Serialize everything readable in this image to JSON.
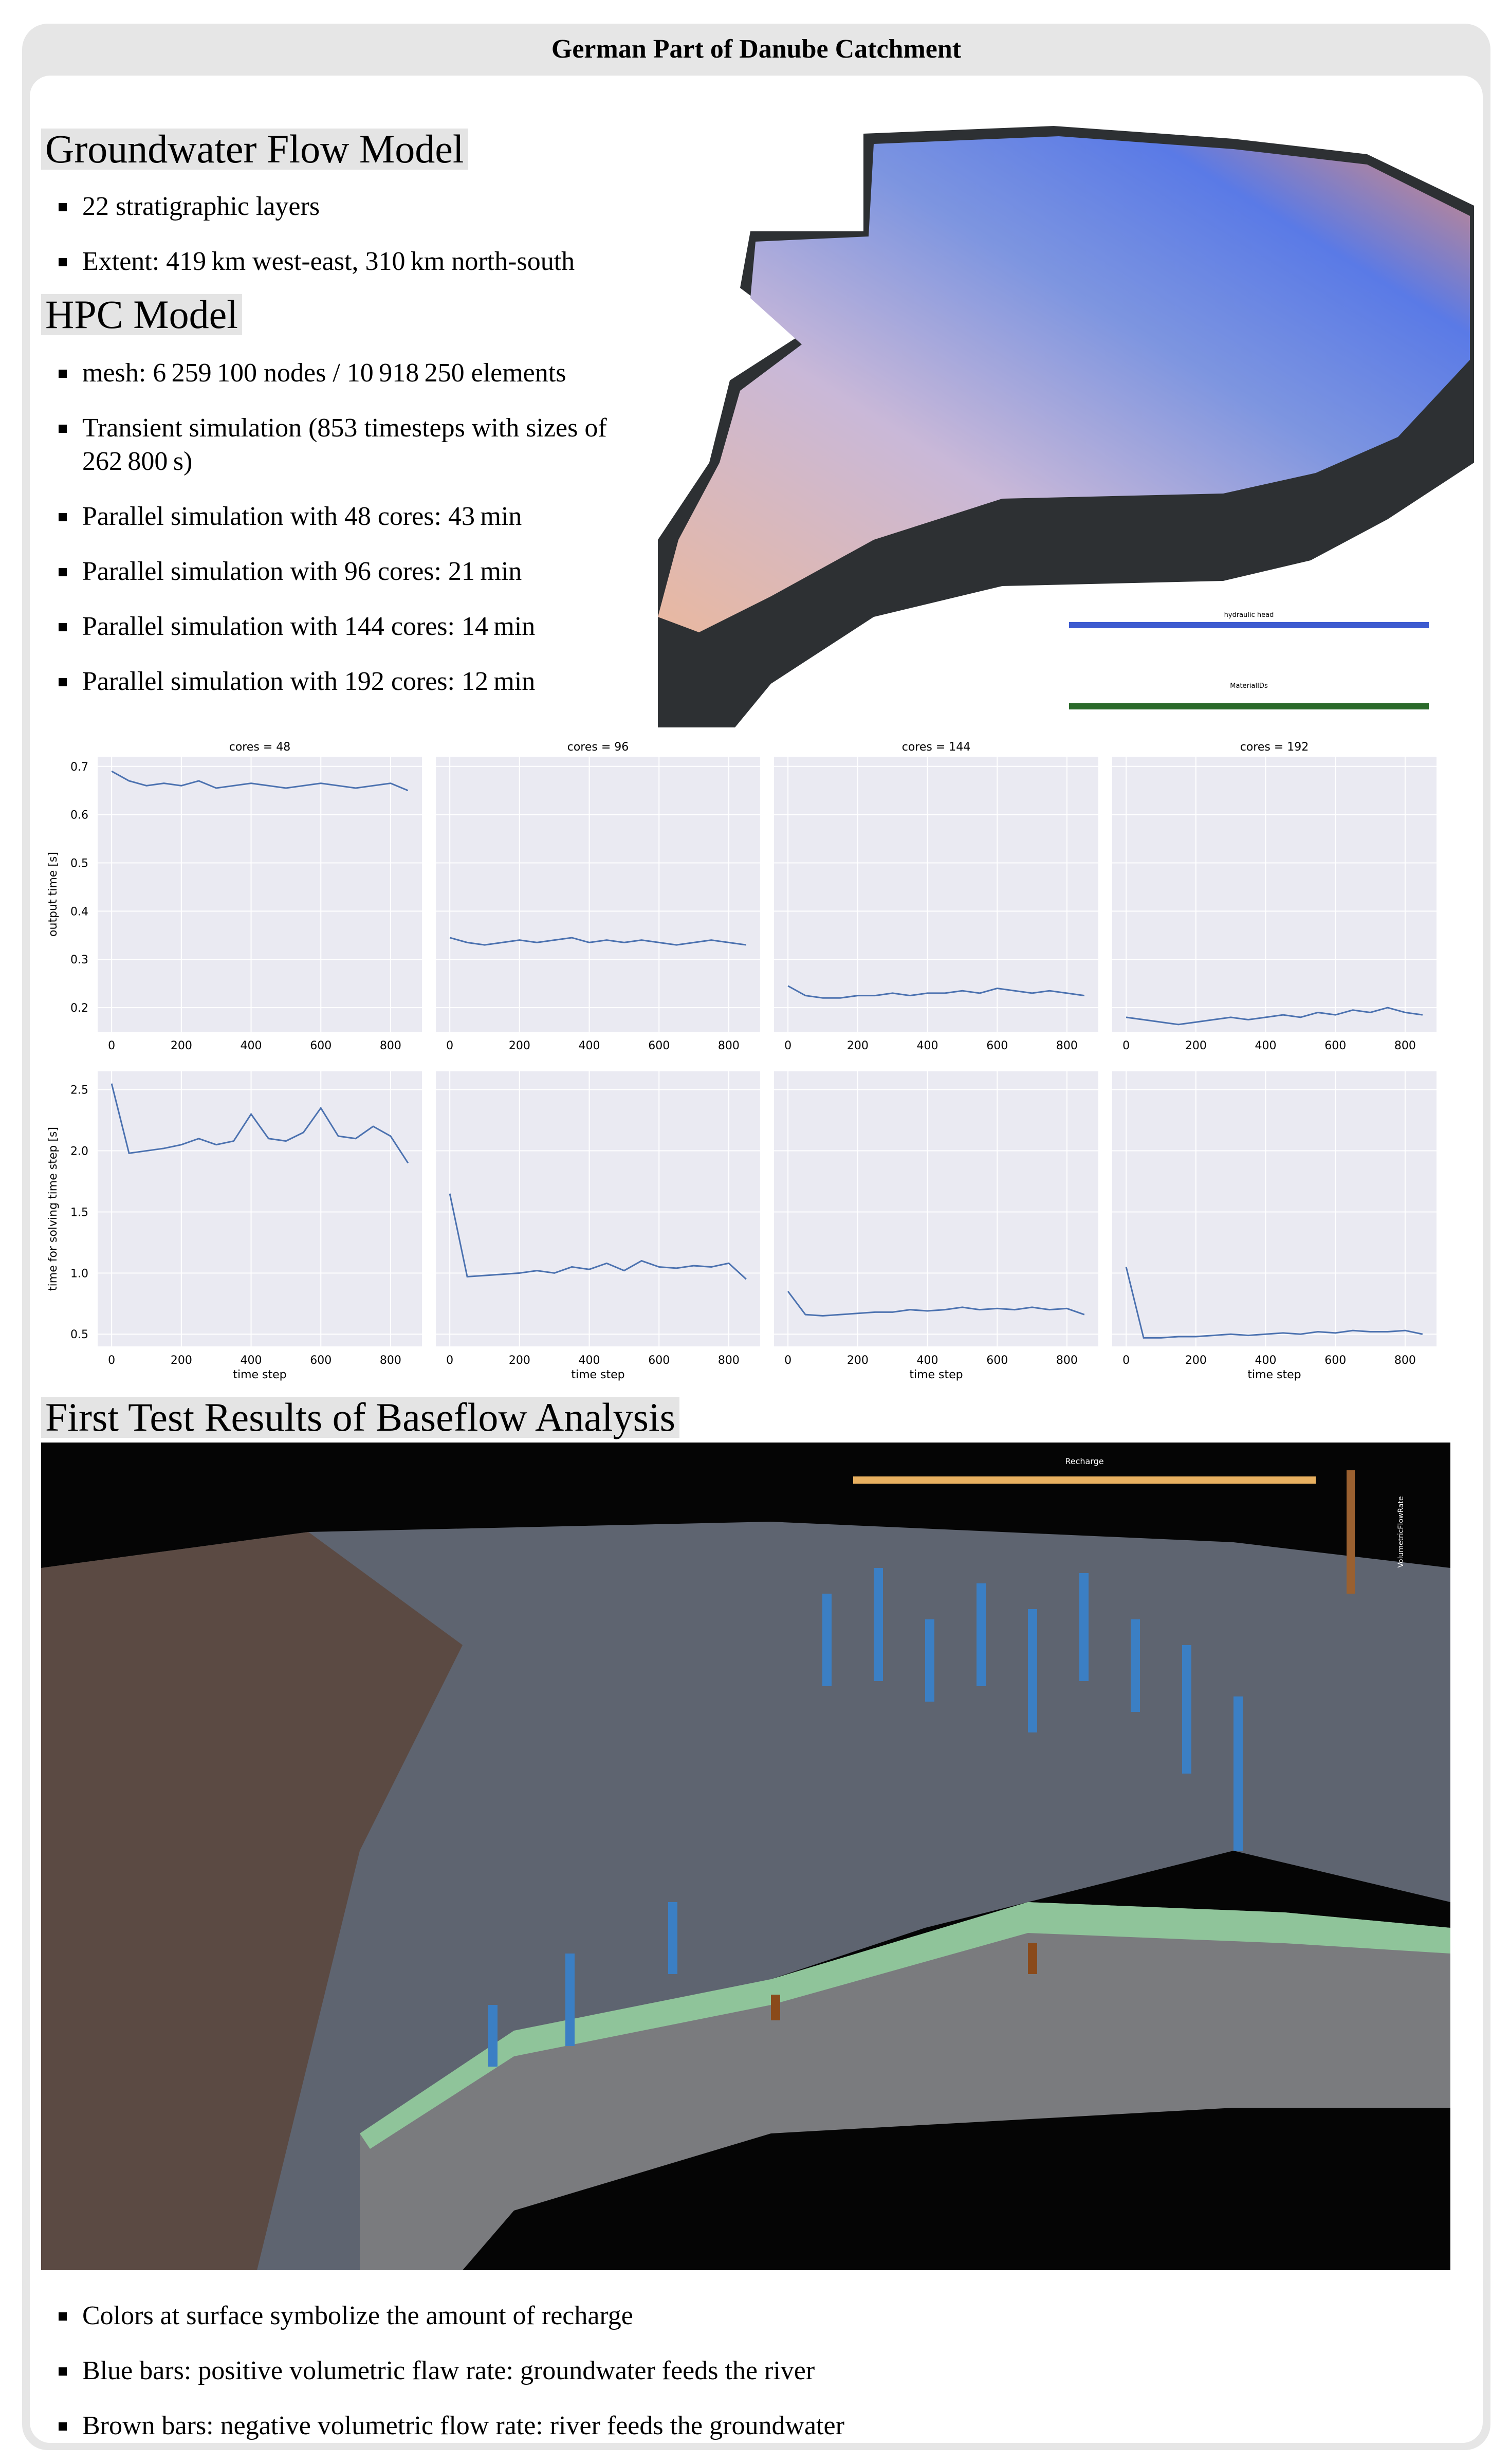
{
  "title": "German Part of Danube Catchment",
  "sections": [
    {
      "heading": "Groundwater Flow Model",
      "bullets": [
        "22 stratigraphic layers",
        "Extent: 419 km west-east, 310 km north-south"
      ]
    },
    {
      "heading": "HPC Model",
      "bullets": [
        "mesh: 6 259 100 nodes / 10 918 250 elements",
        "Transient simulation (853 timesteps with sizes of 262 800 s)",
        "Parallel simulation with 48 cores: 43 min",
        "Parallel simulation with 96 cores: 21 min",
        "Parallel simulation with 144 cores: 14 min",
        "Parallel simulation with 192 cores: 12 min"
      ]
    },
    {
      "heading": "First Test Results of Baseflow Analysis",
      "bullets": [
        "Colors at surface symbolize the amount of recharge",
        "Blue bars: positive volumetric flaw rate: groundwater feeds the river",
        "Brown bars: negative volumetric flow rate: river feeds the groundwater"
      ]
    }
  ],
  "image_labels": {
    "head": "hydraulic head",
    "material": "MaterialIDs",
    "recharge": "Recharge",
    "flow": "VolumetricFlowRate"
  },
  "chart_data": {
    "type": "line",
    "color": "#4c72b0",
    "grid": true,
    "x": [
      0,
      50,
      100,
      150,
      200,
      250,
      300,
      350,
      400,
      450,
      500,
      550,
      600,
      650,
      700,
      750,
      800,
      850
    ],
    "xlim": [
      -40,
      890
    ],
    "xticks": [
      0,
      200,
      400,
      600,
      800
    ],
    "xlabel": "time step",
    "rows": [
      {
        "ylabel": "output time [s]",
        "ylim": [
          0.15,
          0.72
        ],
        "yticks": [
          0.2,
          0.3,
          0.4,
          0.5,
          0.6,
          0.7
        ],
        "charts": [
          {
            "title": "cores = 48",
            "values": [
              0.69,
              0.67,
              0.66,
              0.665,
              0.66,
              0.67,
              0.655,
              0.66,
              0.665,
              0.66,
              0.655,
              0.66,
              0.665,
              0.66,
              0.655,
              0.66,
              0.665,
              0.65
            ]
          },
          {
            "title": "cores = 96",
            "values": [
              0.345,
              0.335,
              0.33,
              0.335,
              0.34,
              0.335,
              0.34,
              0.345,
              0.335,
              0.34,
              0.335,
              0.34,
              0.335,
              0.33,
              0.335,
              0.34,
              0.335,
              0.33
            ]
          },
          {
            "title": "cores = 144",
            "values": [
              0.245,
              0.225,
              0.22,
              0.22,
              0.225,
              0.225,
              0.23,
              0.225,
              0.23,
              0.23,
              0.235,
              0.23,
              0.24,
              0.235,
              0.23,
              0.235,
              0.23,
              0.225
            ]
          },
          {
            "title": "cores = 192",
            "values": [
              0.18,
              0.175,
              0.17,
              0.165,
              0.17,
              0.175,
              0.18,
              0.175,
              0.18,
              0.185,
              0.18,
              0.19,
              0.185,
              0.195,
              0.19,
              0.2,
              0.19,
              0.185
            ]
          }
        ]
      },
      {
        "ylabel": "time for solving time step [s]",
        "ylim": [
          0.4,
          2.65
        ],
        "yticks": [
          0.5,
          {
            "value": 1,
            "label": "1.0"
          },
          1.5,
          {
            "value": 2,
            "label": "2.0"
          },
          2.5
        ],
        "charts": [
          {
            "values": [
              2.55,
              1.98,
              2.0,
              2.02,
              2.05,
              2.1,
              2.05,
              2.08,
              2.3,
              2.1,
              2.08,
              2.15,
              2.35,
              2.12,
              2.1,
              2.2,
              2.12,
              1.9
            ]
          },
          {
            "values": [
              1.65,
              0.97,
              0.98,
              0.99,
              1.0,
              1.02,
              1.0,
              1.05,
              1.03,
              1.08,
              1.02,
              1.1,
              1.05,
              1.04,
              1.06,
              1.05,
              1.08,
              0.95
            ]
          },
          {
            "values": [
              0.85,
              0.66,
              0.65,
              0.66,
              0.67,
              0.68,
              0.68,
              0.7,
              0.69,
              0.7,
              0.72,
              0.7,
              0.71,
              0.7,
              0.72,
              0.7,
              0.71,
              0.66
            ]
          },
          {
            "values": [
              1.05,
              0.47,
              0.47,
              0.48,
              0.48,
              0.49,
              0.5,
              0.49,
              0.5,
              0.51,
              0.5,
              0.52,
              0.51,
              0.53,
              0.52,
              0.52,
              0.53,
              0.5
            ]
          }
        ]
      }
    ]
  }
}
